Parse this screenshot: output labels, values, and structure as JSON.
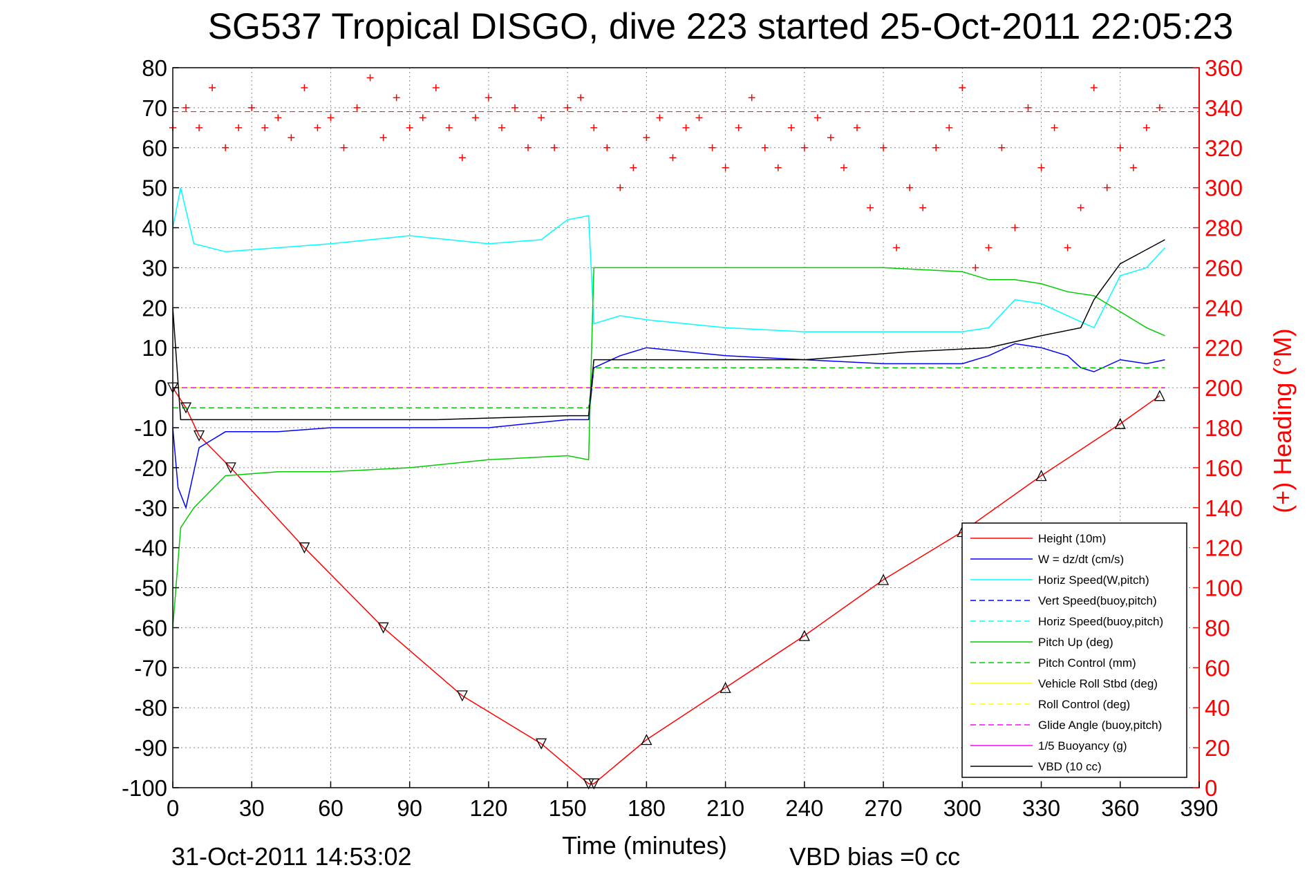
{
  "chart_data": {
    "type": "line",
    "title": "SG537 Tropical DISGO, dive 223 started 25-Oct-2011 22:05:23",
    "xlabel": "Time (minutes)",
    "ylabel_right": "(+) Heading (°M)",
    "footer_left": "31-Oct-2011 14:53:02",
    "footer_right": "VBD bias =0 cc",
    "xlim": [
      0,
      390
    ],
    "ylim": [
      -100,
      80
    ],
    "ylim_right": [
      0,
      360
    ],
    "x_ticks": [
      "0",
      "30",
      "60",
      "90",
      "120",
      "150",
      "180",
      "210",
      "240",
      "270",
      "300",
      "330",
      "360",
      "390"
    ],
    "y_ticks": [
      "80",
      "70",
      "60",
      "50",
      "40",
      "30",
      "20",
      "10",
      "0",
      "-10",
      "-20",
      "-30",
      "-40",
      "-50",
      "-60",
      "-70",
      "-80",
      "-90",
      "-100"
    ],
    "y_ticks_right": [
      "360",
      "340",
      "320",
      "300",
      "280",
      "260",
      "240",
      "220",
      "200",
      "180",
      "160",
      "140",
      "120",
      "100",
      "80",
      "60",
      "40",
      "20",
      "0"
    ],
    "grid": true,
    "legend_position": "lower-right",
    "legend": [
      {
        "label": "Height (10m)",
        "color": "#ff0000",
        "style": "solid"
      },
      {
        "label": "W = dz/dt (cm/s)",
        "color": "#0000ff",
        "style": "solid"
      },
      {
        "label": "Horiz Speed(W,pitch)",
        "color": "#00ffff",
        "style": "solid"
      },
      {
        "label": "Vert Speed(buoy,pitch)",
        "color": "#0000ff",
        "style": "dashed"
      },
      {
        "label": "Horiz Speed(buoy,pitch)",
        "color": "#00ffff",
        "style": "dashed"
      },
      {
        "label": "Pitch Up (deg)",
        "color": "#00cc00",
        "style": "solid"
      },
      {
        "label": "Pitch Control (mm)",
        "color": "#00cc00",
        "style": "dashed"
      },
      {
        "label": "Vehicle Roll Stbd (deg)",
        "color": "#ffff00",
        "style": "solid"
      },
      {
        "label": "Roll Control (deg)",
        "color": "#ffff00",
        "style": "dashed"
      },
      {
        "label": "Glide Angle (buoy,pitch)",
        "color": "#ff00ff",
        "style": "dashed"
      },
      {
        "label": "1/5 Buoyancy (g)",
        "color": "#ff00ff",
        "style": "solid"
      },
      {
        "label": "VBD (10 cc)",
        "color": "#000000",
        "style": "solid"
      }
    ],
    "series": [
      {
        "name": "Height (10m)",
        "color": "#ff0000",
        "x": [
          0,
          5,
          10,
          22,
          50,
          80,
          110,
          140,
          158,
          160,
          180,
          210,
          240,
          270,
          300,
          330,
          360,
          375
        ],
        "y": [
          0,
          -5,
          -12,
          -20,
          -40,
          -60,
          -77,
          -89,
          -99,
          -99,
          -88,
          -75,
          -62,
          -48,
          -36,
          -22,
          -9,
          -2
        ]
      },
      {
        "name": "W = dz/dt (cm/s)",
        "color": "#0000ff",
        "x": [
          0,
          2,
          5,
          10,
          20,
          40,
          60,
          90,
          120,
          150,
          158,
          160,
          170,
          180,
          210,
          240,
          270,
          300,
          310,
          320,
          330,
          340,
          345,
          350,
          360,
          370,
          377
        ],
        "y": [
          -10,
          -25,
          -30,
          -15,
          -11,
          -11,
          -10,
          -10,
          -10,
          -8,
          -8,
          5,
          8,
          10,
          8,
          7,
          6,
          6,
          8,
          11,
          10,
          8,
          5,
          4,
          7,
          6,
          7
        ]
      },
      {
        "name": "Horiz Speed(W,pitch)",
        "color": "#00ffff",
        "x": [
          0,
          3,
          8,
          20,
          40,
          60,
          90,
          120,
          140,
          150,
          158,
          160,
          170,
          180,
          210,
          240,
          270,
          300,
          310,
          320,
          330,
          340,
          350,
          360,
          370,
          377
        ],
        "y": [
          40,
          50,
          36,
          34,
          35,
          36,
          38,
          36,
          37,
          42,
          43,
          16,
          18,
          17,
          15,
          14,
          14,
          14,
          15,
          22,
          21,
          18,
          15,
          28,
          30,
          35
        ]
      },
      {
        "name": "Pitch Up (deg)",
        "color": "#00cc00",
        "x": [
          0,
          3,
          8,
          20,
          40,
          60,
          90,
          120,
          150,
          158,
          160,
          170,
          180,
          210,
          240,
          270,
          300,
          310,
          320,
          330,
          340,
          350,
          360,
          370,
          377
        ],
        "y": [
          -60,
          -35,
          -30,
          -22,
          -21,
          -21,
          -20,
          -18,
          -17,
          -18,
          30,
          30,
          30,
          30,
          30,
          30,
          29,
          27,
          27,
          26,
          24,
          23,
          19,
          15,
          13
        ]
      },
      {
        "name": "Pitch Control (mm)",
        "color": "#00cc00",
        "x": [
          0,
          10,
          158,
          160,
          300,
          330,
          377
        ],
        "y": [
          -5,
          -5,
          -5,
          5,
          5,
          5,
          5
        ]
      },
      {
        "name": "Vehicle Roll Stbd (deg)",
        "color": "#ffff00",
        "x": [
          0,
          160,
          377
        ],
        "y": [
          0,
          0,
          0
        ]
      },
      {
        "name": "Glide Angle (buoy,pitch)",
        "color": "#ff00ff",
        "x": [
          0,
          377
        ],
        "y": [
          0,
          0
        ]
      },
      {
        "name": "VBD (10 cc)",
        "color": "#000000",
        "x": [
          0,
          3,
          10,
          60,
          100,
          150,
          158,
          160,
          200,
          240,
          280,
          310,
          330,
          345,
          350,
          360,
          377
        ],
        "y": [
          20,
          -8,
          -8,
          -8,
          -8,
          -7,
          -7,
          7,
          7,
          7,
          9,
          10,
          13,
          15,
          22,
          31,
          37
        ]
      },
      {
        "name": "(+) Heading",
        "color": "#ff0000",
        "axis": "right",
        "marker": "+",
        "x": [
          0,
          5,
          10,
          15,
          20,
          25,
          30,
          35,
          40,
          45,
          50,
          55,
          60,
          65,
          70,
          75,
          80,
          85,
          90,
          95,
          100,
          105,
          110,
          115,
          120,
          125,
          130,
          135,
          140,
          145,
          150,
          155,
          160,
          165,
          170,
          175,
          180,
          185,
          190,
          195,
          200,
          205,
          210,
          215,
          220,
          225,
          230,
          235,
          240,
          245,
          250,
          255,
          260,
          265,
          270,
          275,
          280,
          285,
          290,
          295,
          300,
          305,
          310,
          315,
          320,
          325,
          330,
          335,
          340,
          345,
          350,
          355,
          360,
          365,
          370,
          375
        ],
        "y": [
          330,
          340,
          330,
          350,
          320,
          330,
          340,
          330,
          335,
          325,
          350,
          330,
          335,
          320,
          340,
          355,
          325,
          345,
          330,
          335,
          350,
          330,
          315,
          335,
          345,
          330,
          340,
          320,
          335,
          320,
          340,
          345,
          330,
          320,
          300,
          310,
          325,
          335,
          315,
          330,
          335,
          320,
          310,
          330,
          345,
          320,
          310,
          330,
          320,
          335,
          325,
          310,
          330,
          290,
          320,
          270,
          300,
          290,
          320,
          330,
          350,
          260,
          270,
          320,
          280,
          340,
          310,
          330,
          270,
          290,
          350,
          300,
          320,
          310,
          330,
          340
        ]
      }
    ]
  }
}
